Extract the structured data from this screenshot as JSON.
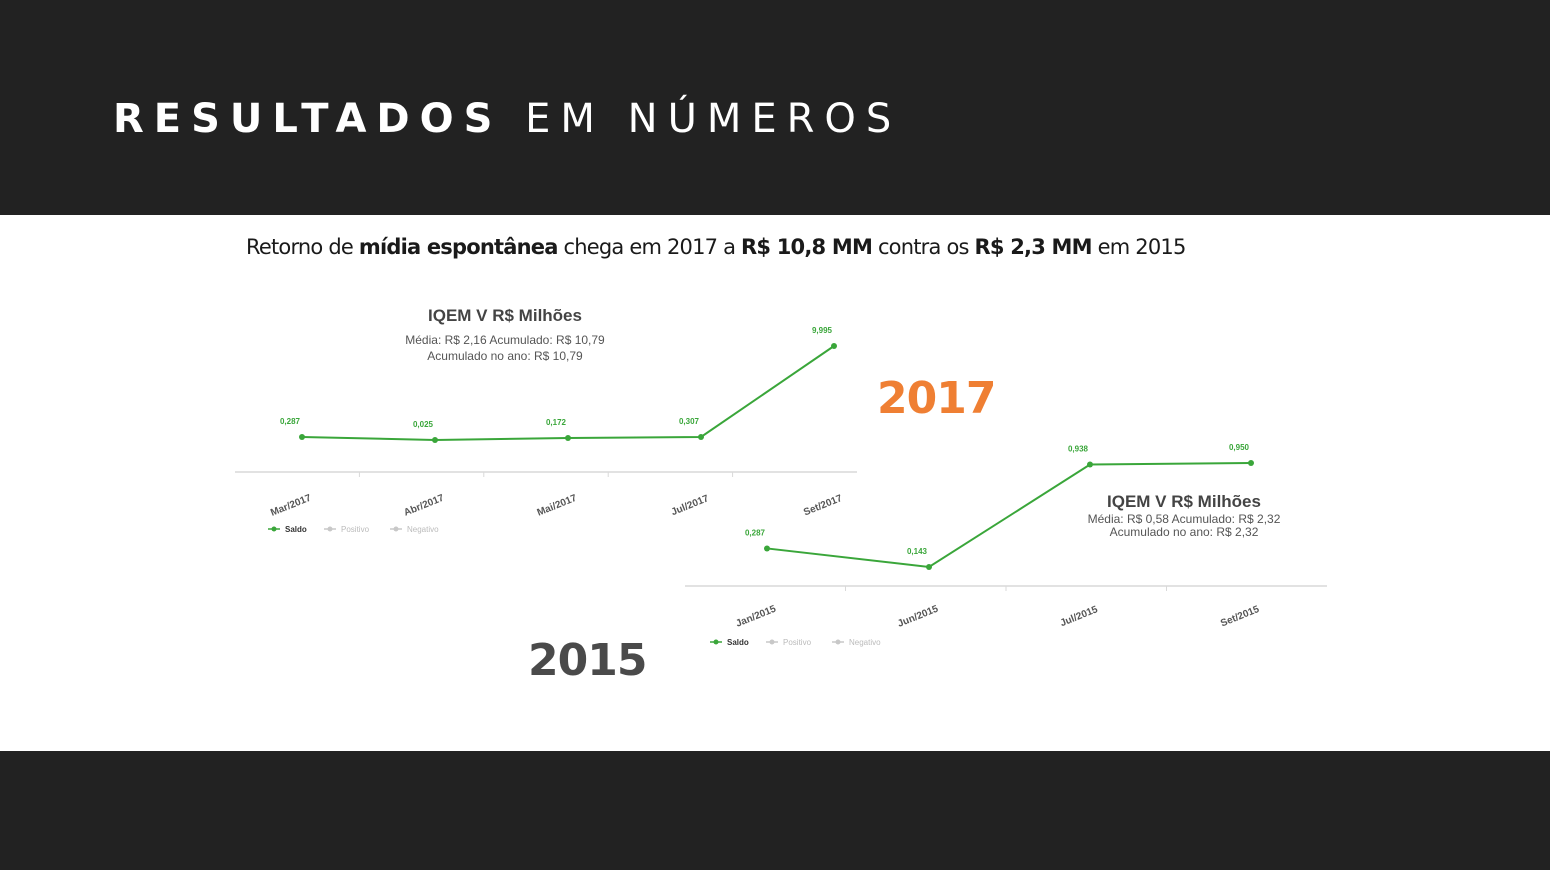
{
  "header": {
    "title_bold": "RESULTADOS",
    "title_light": "EM NÚMEROS"
  },
  "headline": {
    "part1": "Retorno de ",
    "bold1": "mídia espontânea",
    "part2": " chega em 2017 a ",
    "bold2": "R$ 10,8 MM",
    "part3": " contra os ",
    "bold3": "R$ 2,3 MM",
    "part4": " em 2015"
  },
  "year_labels": {
    "y2017": "2017",
    "y2015": "2015"
  },
  "colors": {
    "line": "#3aa63a",
    "accent_2017": "#ef7f33",
    "gray_2015": "#4a4a4a",
    "background_dark": "#222222"
  },
  "chart_data": [
    {
      "type": "line",
      "title": "IQEM V R$ Milhões",
      "subtitle1": "Média: R$ 2,16 Acumulado: R$ 10,79",
      "subtitle2": "Acumulado no ano: R$ 10,79",
      "categories": [
        "Mar/2017",
        "Abr/2017",
        "Mai/2017",
        "Jul/2017",
        "Set/2017"
      ],
      "series": [
        {
          "name": "Saldo",
          "values": [
            0.287,
            0.025,
            0.172,
            0.307,
            9.995
          ],
          "labels": [
            "0,287",
            "0,025",
            "0,172",
            "0,307",
            "9,995"
          ]
        }
      ],
      "legend": [
        "Saldo",
        "Positivo",
        "Negativo"
      ],
      "legend_position": "bottom-left",
      "ylim": [
        0,
        9.995
      ]
    },
    {
      "type": "line",
      "title": "IQEM V R$ Milhões",
      "subtitle1": "Média: R$ 0,58 Acumulado: R$ 2,32",
      "subtitle2": "Acumulado no ano: R$ 2,32",
      "categories": [
        "Jan/2015",
        "Jun/2015",
        "Jul/2015",
        "Set/2015"
      ],
      "series": [
        {
          "name": "Saldo",
          "values": [
            0.287,
            0.143,
            0.938,
            0.95
          ],
          "labels": [
            "0,287",
            "0,143",
            "0,938",
            "0,950"
          ]
        }
      ],
      "legend": [
        "Saldo",
        "Positivo",
        "Negativo"
      ],
      "legend_position": "bottom-left",
      "ylim": [
        0.143,
        0.95
      ]
    }
  ]
}
